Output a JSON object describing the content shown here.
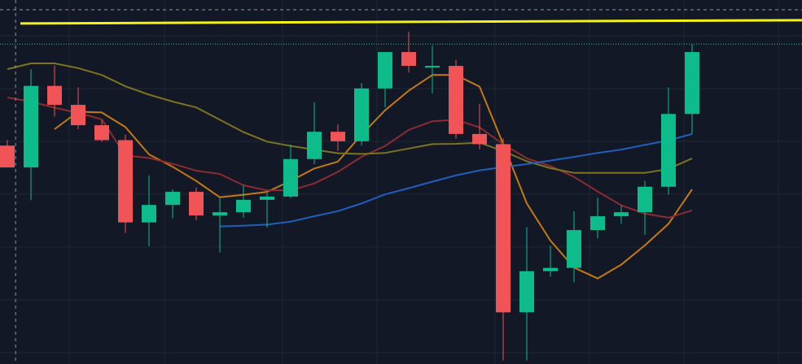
{
  "colors": {
    "background": "#121826",
    "grid": "#1f2637",
    "up": "#0ebb8a",
    "down": "#f05457",
    "resistance_line": "#f3f316",
    "crosshair": "#8d93a3",
    "price_level_line": "#4fb3a9",
    "ma_fast": "#c47a14",
    "ma_mid": "#8d2b30",
    "ma_slow": "#7c741e",
    "ma_long": "#1f5fbd"
  },
  "chart_data": {
    "type": "candlestick",
    "x_range": [
      -0.5,
      33.5
    ],
    "y_range": [
      0,
      100
    ],
    "grid": true,
    "candles": [
      {
        "o": 60.0,
        "h": 61.5,
        "l": 55.0,
        "c": 54.0
      },
      {
        "o": 54.0,
        "h": 81.0,
        "l": 45.0,
        "c": 76.4
      },
      {
        "o": 76.4,
        "h": 82.0,
        "l": 68.0,
        "c": 71.2
      },
      {
        "o": 71.2,
        "h": 76.0,
        "l": 64.5,
        "c": 65.6
      },
      {
        "o": 65.6,
        "h": 67.0,
        "l": 61.0,
        "c": 61.5
      },
      {
        "o": 61.5,
        "h": 63.0,
        "l": 36.0,
        "c": 38.9
      },
      {
        "o": 38.9,
        "h": 51.8,
        "l": 32.4,
        "c": 43.7
      },
      {
        "o": 43.7,
        "h": 48.0,
        "l": 40.0,
        "c": 47.3
      },
      {
        "o": 47.3,
        "h": 48.5,
        "l": 39.5,
        "c": 40.8
      },
      {
        "o": 40.8,
        "h": 45.5,
        "l": 30.6,
        "c": 41.7
      },
      {
        "o": 41.7,
        "h": 49.1,
        "l": 40.2,
        "c": 45.1
      },
      {
        "o": 45.1,
        "h": 47.0,
        "l": 37.5,
        "c": 46.0
      },
      {
        "o": 46.0,
        "h": 60.3,
        "l": 45.5,
        "c": 56.3
      },
      {
        "o": 56.3,
        "h": 71.9,
        "l": 54.9,
        "c": 63.8
      },
      {
        "o": 63.8,
        "h": 65.8,
        "l": 58.5,
        "c": 61.2
      },
      {
        "o": 61.2,
        "h": 77.2,
        "l": 60.0,
        "c": 75.7
      },
      {
        "o": 75.7,
        "h": 85.7,
        "l": 70.5,
        "c": 85.7
      },
      {
        "o": 85.7,
        "h": 91.3,
        "l": 80.1,
        "c": 81.9
      },
      {
        "o": 81.9,
        "h": 87.5,
        "l": 74.3,
        "c": 81.9
      },
      {
        "o": 81.9,
        "h": 83.5,
        "l": 61.9,
        "c": 63.2
      },
      {
        "o": 63.2,
        "h": 71.5,
        "l": 59.0,
        "c": 60.4
      },
      {
        "o": 60.4,
        "h": 62.0,
        "l": 1.0,
        "c": 14.2
      },
      {
        "o": 14.2,
        "h": 37.6,
        "l": 1.0,
        "c": 25.5
      },
      {
        "o": 25.5,
        "h": 32.5,
        "l": 24.0,
        "c": 26.4
      },
      {
        "o": 26.4,
        "h": 42.0,
        "l": 22.5,
        "c": 36.8
      },
      {
        "o": 36.8,
        "h": 45.7,
        "l": 34.5,
        "c": 40.6
      },
      {
        "o": 40.6,
        "h": 43.5,
        "l": 38.5,
        "c": 41.7
      },
      {
        "o": 41.7,
        "h": 50.3,
        "l": 35.5,
        "c": 48.7
      },
      {
        "o": 48.7,
        "h": 76.0,
        "l": 46.5,
        "c": 68.7
      },
      {
        "o": 68.7,
        "h": 87.9,
        "l": 63.2,
        "c": 85.7
      }
    ],
    "moving_averages": [
      {
        "key": "ma_fast",
        "values": [
          null,
          null,
          64.5,
          69.3,
          69.1,
          65.1,
          57.6,
          54.2,
          50.3,
          45.8,
          46.5,
          47.3,
          50.3,
          53.7,
          55.6,
          63.0,
          69.7,
          75.1,
          79.4,
          79.4,
          76.2,
          60.4,
          44.1,
          33.9,
          26.5,
          23.5,
          27.3,
          32.6,
          38.5,
          48.0
        ]
      },
      {
        "key": "ma_mid",
        "values": [
          73.2,
          72.1,
          70.4,
          69.0,
          67.2,
          57.3,
          56.6,
          55.0,
          53.1,
          52.2,
          49.1,
          47.7,
          47.7,
          49.6,
          52.8,
          56.9,
          59.9,
          64.3,
          66.7,
          67.1,
          65.0,
          60.4,
          56.5,
          54.4,
          51.4,
          47.4,
          43.6,
          41.3,
          40.2,
          42.2
        ]
      },
      {
        "key": "ma_slow",
        "values": [
          81.0,
          82.6,
          82.6,
          81.3,
          79.4,
          76.3,
          74.0,
          72.1,
          70.5,
          67.1,
          63.7,
          61.1,
          59.9,
          58.9,
          57.9,
          57.7,
          58.0,
          59.2,
          60.4,
          60.5,
          60.8,
          58.5,
          55.7,
          53.8,
          52.5,
          52.5,
          52.5,
          52.5,
          53.6,
          56.5
        ]
      },
      {
        "key": "ma_long",
        "values": [
          null,
          null,
          null,
          null,
          null,
          null,
          null,
          null,
          null,
          37.8,
          38.0,
          38.3,
          39.1,
          40.6,
          42.0,
          44.1,
          46.6,
          48.3,
          50.1,
          51.8,
          53.2,
          54.1,
          54.9,
          55.9,
          56.9,
          58.0,
          58.9,
          60.2,
          61.4,
          63.2
        ]
      }
    ],
    "resistance_level": 94.0,
    "price_level_line": 87.9,
    "crosshair": {
      "index": 0.35,
      "level": 100
    }
  }
}
